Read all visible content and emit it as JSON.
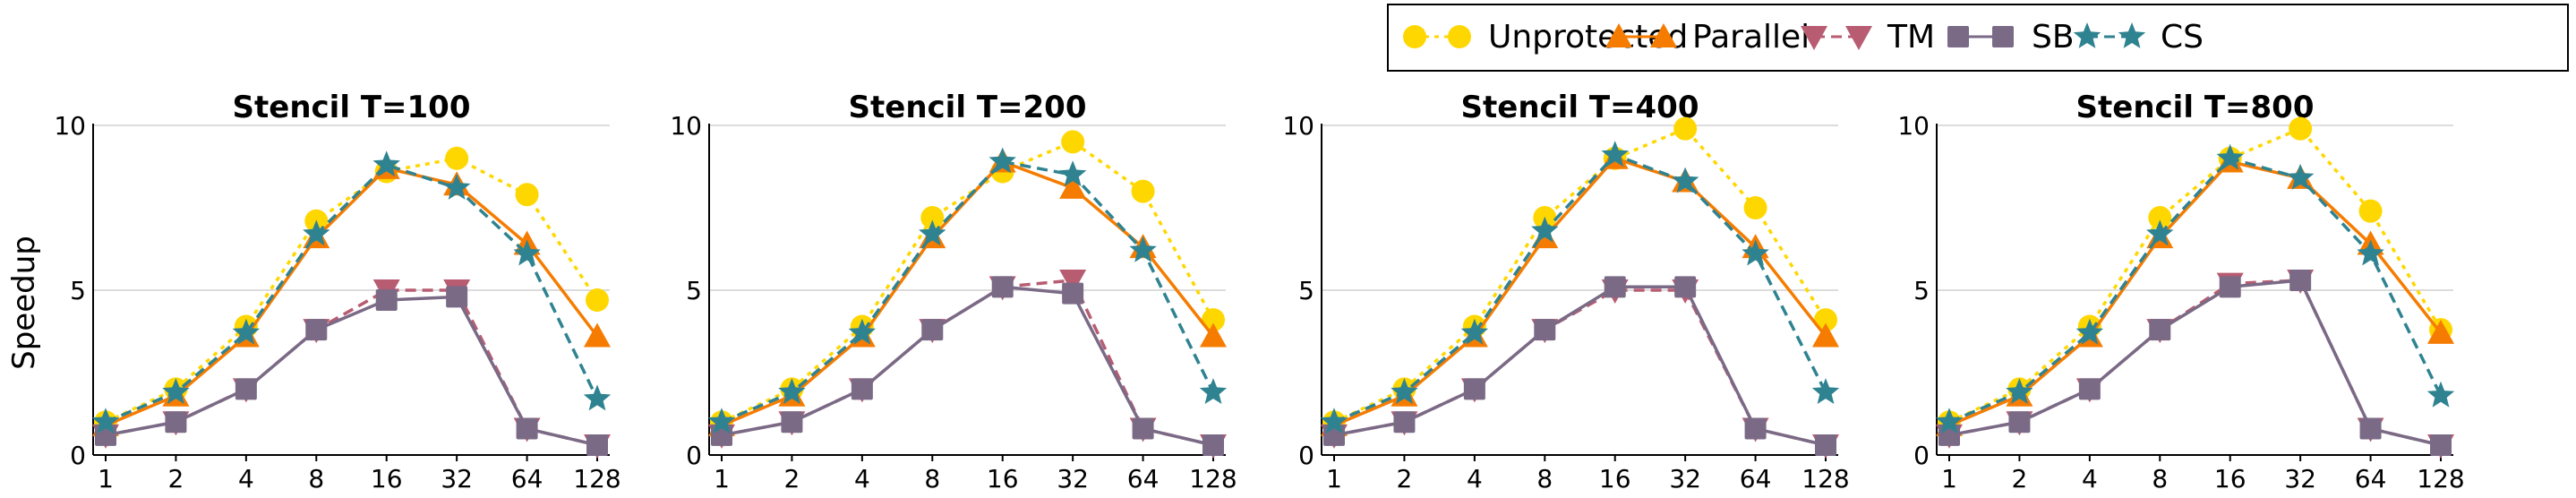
{
  "chart_data": {
    "type": "line",
    "categories": [
      "1",
      "2",
      "4",
      "8",
      "16",
      "32",
      "64",
      "128"
    ],
    "ylabel": "Speedup",
    "xlabel": "",
    "ylim": [
      0,
      10
    ],
    "yticks": [
      0,
      5,
      10
    ],
    "grid": "horizontal",
    "legend": {
      "placement": "top-right",
      "entries": [
        {
          "label": "Unprotected",
          "color": "#FFD700",
          "marker": "circle",
          "dash": "dotted"
        },
        {
          "label": "Parallel",
          "color": "#F57C00",
          "marker": "triangle-up",
          "dash": "solid"
        },
        {
          "label": "TM",
          "color": "#B85C72",
          "marker": "triangle-down",
          "dash": "dashed"
        },
        {
          "label": "SB",
          "color": "#7A6A86",
          "marker": "square",
          "dash": "solid"
        },
        {
          "label": "CS",
          "color": "#2F8391",
          "marker": "star",
          "dash": "dashed"
        }
      ]
    },
    "panels": [
      {
        "title": "Stencil T=100",
        "series": [
          {
            "name": "Unprotected",
            "values": [
              1.0,
              2.0,
              3.9,
              7.1,
              8.6,
              9.0,
              7.9,
              4.7
            ]
          },
          {
            "name": "Parallel",
            "values": [
              0.9,
              1.8,
              3.6,
              6.6,
              8.7,
              8.2,
              6.4,
              3.6
            ]
          },
          {
            "name": "TM",
            "values": [
              0.6,
              1.0,
              2.0,
              3.8,
              5.0,
              5.0,
              0.8,
              0.3
            ]
          },
          {
            "name": "SB",
            "values": [
              0.6,
              1.0,
              2.0,
              3.8,
              4.7,
              4.8,
              0.8,
              0.3
            ]
          },
          {
            "name": "CS",
            "values": [
              1.0,
              1.9,
              3.7,
              6.7,
              8.8,
              8.1,
              6.1,
              1.7
            ]
          }
        ]
      },
      {
        "title": "Stencil T=200",
        "series": [
          {
            "name": "Unprotected",
            "values": [
              1.0,
              2.0,
              3.9,
              7.2,
              8.6,
              9.5,
              8.0,
              4.1
            ]
          },
          {
            "name": "Parallel",
            "values": [
              0.9,
              1.8,
              3.6,
              6.6,
              8.9,
              8.1,
              6.3,
              3.6
            ]
          },
          {
            "name": "TM",
            "values": [
              0.6,
              1.0,
              2.0,
              3.8,
              5.1,
              5.3,
              0.8,
              0.3
            ]
          },
          {
            "name": "SB",
            "values": [
              0.6,
              1.0,
              2.0,
              3.8,
              5.1,
              4.9,
              0.8,
              0.3
            ]
          },
          {
            "name": "CS",
            "values": [
              1.0,
              1.9,
              3.7,
              6.7,
              8.9,
              8.5,
              6.2,
              1.9
            ]
          }
        ]
      },
      {
        "title": "Stencil T=400",
        "series": [
          {
            "name": "Unprotected",
            "values": [
              1.0,
              2.0,
              3.9,
              7.2,
              9.0,
              9.9,
              7.5,
              4.1
            ]
          },
          {
            "name": "Parallel",
            "values": [
              0.9,
              1.8,
              3.6,
              6.6,
              9.0,
              8.3,
              6.3,
              3.6
            ]
          },
          {
            "name": "TM",
            "values": [
              0.6,
              1.0,
              2.0,
              3.8,
              5.0,
              5.0,
              0.8,
              0.3
            ]
          },
          {
            "name": "SB",
            "values": [
              0.6,
              1.0,
              2.0,
              3.8,
              5.1,
              5.1,
              0.8,
              0.3
            ]
          },
          {
            "name": "CS",
            "values": [
              1.0,
              1.9,
              3.7,
              6.8,
              9.1,
              8.3,
              6.1,
              1.9
            ]
          }
        ]
      },
      {
        "title": "Stencil T=800",
        "series": [
          {
            "name": "Unprotected",
            "values": [
              1.0,
              2.0,
              3.9,
              7.2,
              9.0,
              9.9,
              7.4,
              3.8
            ]
          },
          {
            "name": "Parallel",
            "values": [
              0.9,
              1.8,
              3.6,
              6.6,
              8.9,
              8.4,
              6.4,
              3.7
            ]
          },
          {
            "name": "TM",
            "values": [
              0.6,
              1.0,
              2.0,
              3.8,
              5.2,
              5.3,
              0.8,
              0.3
            ]
          },
          {
            "name": "SB",
            "values": [
              0.6,
              1.0,
              2.0,
              3.8,
              5.1,
              5.3,
              0.8,
              0.3
            ]
          },
          {
            "name": "CS",
            "values": [
              1.0,
              1.9,
              3.7,
              6.7,
              9.0,
              8.4,
              6.1,
              1.8
            ]
          }
        ]
      }
    ]
  }
}
